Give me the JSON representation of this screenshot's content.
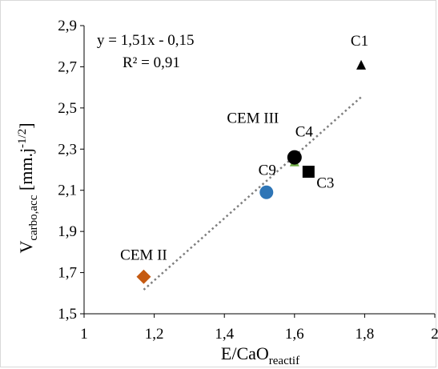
{
  "chart_data": {
    "type": "scatter",
    "xlabel": "E/CaO",
    "xlabel_subscript": "reactif",
    "ylabel": "V",
    "ylabel_subscript": "carbo,acc",
    "ylabel_unit": " [mm.j",
    "ylabel_unit_sup": "-1/2",
    "ylabel_unit_end": "]",
    "xlim": [
      1,
      2
    ],
    "ylim": [
      1.5,
      2.9
    ],
    "x_ticks": [
      "1",
      "1,2",
      "1,4",
      "1,6",
      "1,8",
      "2"
    ],
    "x_tick_values": [
      1,
      1.2,
      1.4,
      1.6,
      1.8,
      2
    ],
    "y_ticks": [
      "1,5",
      "1,7",
      "1,9",
      "2,1",
      "2,3",
      "2,5",
      "2,7",
      "2,9"
    ],
    "y_tick_values": [
      1.5,
      1.7,
      1.9,
      2.1,
      2.3,
      2.5,
      2.7,
      2.9
    ],
    "grid": false,
    "points": [
      {
        "label": "C1",
        "x": 1.79,
        "y": 2.71,
        "marker": "triangle",
        "color": "#000000"
      },
      {
        "label": "C4",
        "x": 1.6,
        "y": 2.26,
        "marker": "circle",
        "color": "#000000"
      },
      {
        "label": "CEM III",
        "x": 1.6,
        "y": 2.24,
        "marker": "triangle",
        "color": "#70ad47"
      },
      {
        "label": "C3",
        "x": 1.64,
        "y": 2.19,
        "marker": "square",
        "color": "#000000"
      },
      {
        "label": "C9",
        "x": 1.52,
        "y": 2.09,
        "marker": "circle",
        "color": "#2e75b6"
      },
      {
        "label": "CEM II",
        "x": 1.17,
        "y": 1.68,
        "marker": "diamond",
        "color": "#c55a11"
      }
    ],
    "trendline": {
      "equation": "y = 1,51x - 0,15",
      "r2": "R² = 0,91",
      "slope": 1.51,
      "intercept": -0.15,
      "x_range": [
        1.17,
        1.79
      ],
      "color": "#7f7f7f",
      "style": "dotted"
    }
  }
}
